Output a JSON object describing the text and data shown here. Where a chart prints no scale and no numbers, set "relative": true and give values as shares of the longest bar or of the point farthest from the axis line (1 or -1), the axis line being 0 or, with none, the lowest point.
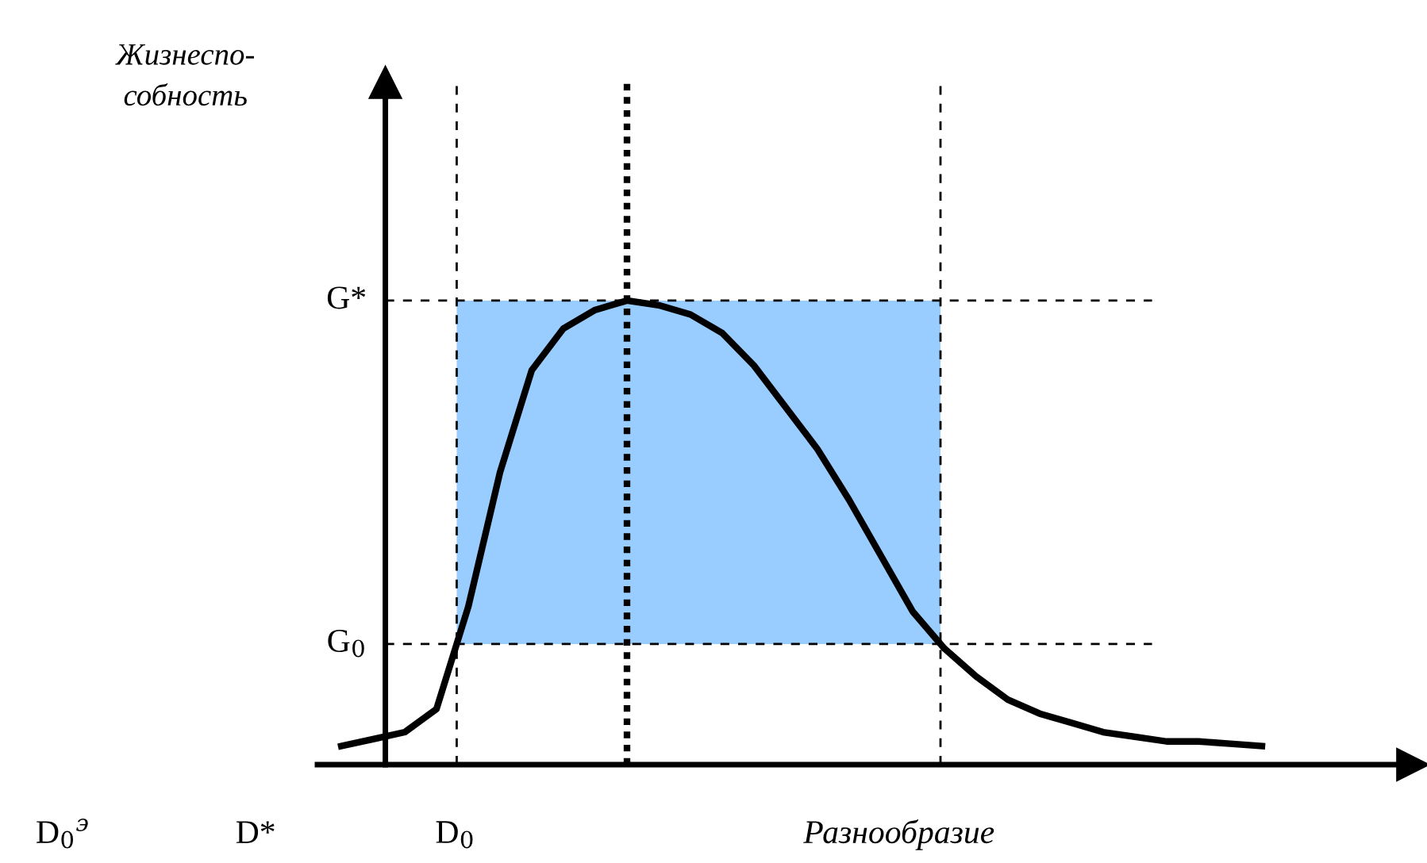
{
  "chart_data": {
    "type": "line",
    "relative": true,
    "xlabel": "Разнообразие",
    "categories": [
      null,
      null,
      null,
      null,
      null,
      null,
      null,
      null,
      null,
      null,
      null,
      null,
      null,
      null,
      null,
      null,
      null,
      null,
      null,
      null,
      null,
      null,
      null,
      null,
      null,
      null,
      null,
      null,
      null,
      null
    ],
    "series": [
      {
        "color": "#000000",
        "values": [
          0.04,
          0.055,
          0.07,
          0.12,
          0.34,
          0.63,
          0.85,
          0.94,
          0.98,
          1.0,
          0.99,
          0.97,
          0.93,
          0.86,
          0.77,
          0.68,
          0.57,
          0.45,
          0.33,
          0.25,
          0.19,
          0.14,
          0.11,
          0.09,
          0.07,
          0.06,
          0.05,
          0.05,
          0.045,
          0.04
        ]
      }
    ],
    "ref_lines": [
      {
        "axis": "y",
        "value": 1.0,
        "label": "G*",
        "line_style": "dashed",
        "color": "#000000"
      },
      {
        "axis": "y",
        "value": 0.26,
        "label": "G$_{0}$",
        "line_style": "dashed",
        "color": "#000000"
      }
    ],
    "annotations": [
      "Жизнеспо-\nсобность",
      "D$_{0}$$^{э}$",
      "D*",
      "D$_{0}$"
    ],
    "grid": false,
    "legend": false
  }
}
